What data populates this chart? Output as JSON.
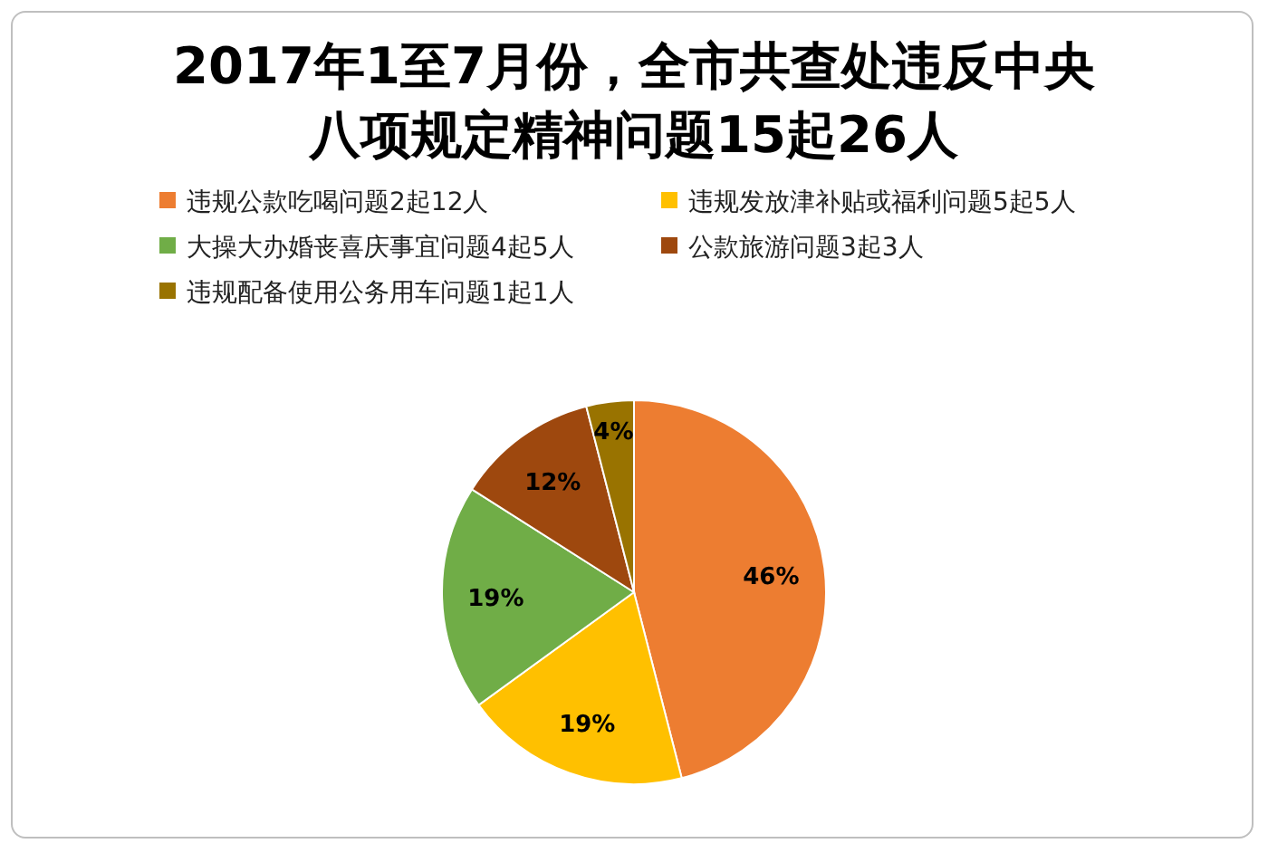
{
  "chart_data": {
    "type": "pie",
    "title": "2017年1至7月份，全市共查处违反中央八项规定精神问题15起26人",
    "categories": [
      "违规公款吃喝问题2起12人",
      "违规发放津补贴或福利问题5起5人",
      "大操大办婚丧喜庆事宜问题4起5人",
      "公款旅游问题3起3人",
      "违规配备使用公务用车问题1起1人"
    ],
    "values": [
      46,
      19,
      19,
      12,
      4
    ],
    "colors": [
      "#ed7d31",
      "#ffc000",
      "#70ad47",
      "#9e480e",
      "#997300"
    ],
    "value_labels": [
      "46%",
      "19%",
      "19%",
      "12%",
      "4%"
    ],
    "legend": "top"
  }
}
